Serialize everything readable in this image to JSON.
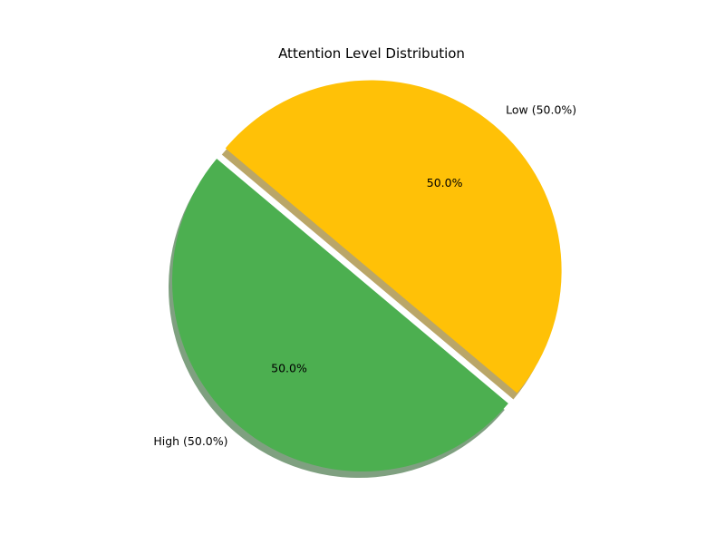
{
  "chart_data": {
    "type": "pie",
    "title": "Attention Level Distribution",
    "slices": [
      {
        "label": "High",
        "value": 50.0,
        "label_text": "High (50.0%)",
        "pct_text": "50.0%",
        "color": "#4caf50",
        "exploded": false
      },
      {
        "label": "Low",
        "value": 50.0,
        "label_text": "Low (50.0%)",
        "pct_text": "50.0%",
        "color": "#ffc107",
        "exploded": true
      }
    ],
    "shadow": true,
    "legend": "none"
  }
}
